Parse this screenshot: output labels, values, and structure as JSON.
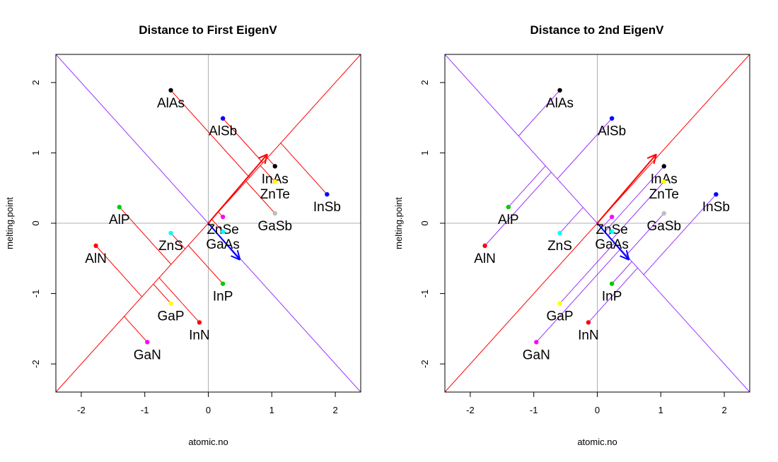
{
  "chart_data": [
    {
      "type": "scatter",
      "title": "Distance to First EigenV",
      "xlabel": "atomic.no",
      "ylabel": "melting.point",
      "xlim": [
        -2.4,
        2.4
      ],
      "ylim": [
        -2.4,
        2.4
      ],
      "xticks": [
        -2,
        -1,
        0,
        1,
        2
      ],
      "yticks": [
        -2,
        -1,
        0,
        1,
        2
      ],
      "tick_labels": [
        "-2",
        "-1",
        "0",
        "1",
        "2"
      ],
      "project_to": "first",
      "lines": [
        {
          "name": "first-eigenvector-line",
          "slope": 1,
          "color": "#ff0000"
        },
        {
          "name": "second-eigenvector-line",
          "slope": -1,
          "color": "#9933ff"
        }
      ],
      "arrows": [
        {
          "name": "first-eigenvector-arrow",
          "to": [
            0.93,
            0.98
          ],
          "color": "#ff0000"
        },
        {
          "name": "second-eigenvector-arrow",
          "to": [
            0.5,
            -0.52
          ],
          "color": "#0000ff"
        }
      ],
      "points": [
        {
          "label": "AlAs",
          "x": -0.59,
          "y": 1.89,
          "color": "#000000"
        },
        {
          "label": "AlSb",
          "x": 0.23,
          "y": 1.49,
          "color": "#0000ff"
        },
        {
          "label": "InAs",
          "x": 1.05,
          "y": 0.81,
          "color": "#000000"
        },
        {
          "label": "ZnTe",
          "x": 1.05,
          "y": 0.59,
          "color": "#ffff00"
        },
        {
          "label": "InSb",
          "x": 1.87,
          "y": 0.41,
          "color": "#0000ff"
        },
        {
          "label": "AlP",
          "x": -1.4,
          "y": 0.23,
          "color": "#00cc00"
        },
        {
          "label": "ZnSe",
          "x": 0.23,
          "y": 0.09,
          "color": "#ff00ff"
        },
        {
          "label": "GaSb",
          "x": 1.05,
          "y": 0.14,
          "color": "#bebebe"
        },
        {
          "label": "ZnS",
          "x": -0.59,
          "y": -0.14,
          "color": "#00ffff"
        },
        {
          "label": "GaAs",
          "x": 0.23,
          "y": -0.12,
          "color": "#00ffff"
        },
        {
          "label": "AlN",
          "x": -1.77,
          "y": -0.32,
          "color": "#ff0000"
        },
        {
          "label": "InP",
          "x": 0.23,
          "y": -0.86,
          "color": "#00cc00"
        },
        {
          "label": "GaP",
          "x": -0.59,
          "y": -1.14,
          "color": "#ffff00"
        },
        {
          "label": "InN",
          "x": -0.14,
          "y": -1.41,
          "color": "#ff0000"
        },
        {
          "label": "GaN",
          "x": -0.96,
          "y": -1.69,
          "color": "#ff00ff"
        }
      ]
    },
    {
      "type": "scatter",
      "title": "Distance to 2nd EigenV",
      "xlabel": "atomic.no",
      "ylabel": "melting.point",
      "xlim": [
        -2.4,
        2.4
      ],
      "ylim": [
        -2.4,
        2.4
      ],
      "xticks": [
        -2,
        -1,
        0,
        1,
        2
      ],
      "yticks": [
        -2,
        -1,
        0,
        1,
        2
      ],
      "tick_labels": [
        "-2",
        "-1",
        "0",
        "1",
        "2"
      ],
      "project_to": "second",
      "lines": [
        {
          "name": "first-eigenvector-line",
          "slope": 1,
          "color": "#ff0000"
        },
        {
          "name": "second-eigenvector-line",
          "slope": -1,
          "color": "#9933ff"
        }
      ],
      "arrows": [
        {
          "name": "first-eigenvector-arrow",
          "to": [
            0.93,
            0.98
          ],
          "color": "#ff0000"
        },
        {
          "name": "second-eigenvector-arrow",
          "to": [
            0.5,
            -0.52
          ],
          "color": "#0000ff"
        }
      ],
      "points": [
        {
          "label": "AlAs",
          "x": -0.59,
          "y": 1.89,
          "color": "#000000"
        },
        {
          "label": "AlSb",
          "x": 0.23,
          "y": 1.49,
          "color": "#0000ff"
        },
        {
          "label": "InAs",
          "x": 1.05,
          "y": 0.81,
          "color": "#000000"
        },
        {
          "label": "ZnTe",
          "x": 1.05,
          "y": 0.59,
          "color": "#ffff00"
        },
        {
          "label": "InSb",
          "x": 1.87,
          "y": 0.41,
          "color": "#0000ff"
        },
        {
          "label": "AlP",
          "x": -1.4,
          "y": 0.23,
          "color": "#00cc00"
        },
        {
          "label": "ZnSe",
          "x": 0.23,
          "y": 0.09,
          "color": "#ff00ff"
        },
        {
          "label": "GaSb",
          "x": 1.05,
          "y": 0.14,
          "color": "#bebebe"
        },
        {
          "label": "ZnS",
          "x": -0.59,
          "y": -0.14,
          "color": "#00ffff"
        },
        {
          "label": "GaAs",
          "x": 0.23,
          "y": -0.12,
          "color": "#00ffff"
        },
        {
          "label": "AlN",
          "x": -1.77,
          "y": -0.32,
          "color": "#ff0000"
        },
        {
          "label": "InP",
          "x": 0.23,
          "y": -0.86,
          "color": "#00cc00"
        },
        {
          "label": "GaP",
          "x": -0.59,
          "y": -1.14,
          "color": "#ffff00"
        },
        {
          "label": "InN",
          "x": -0.14,
          "y": -1.41,
          "color": "#ff0000"
        },
        {
          "label": "GaN",
          "x": -0.96,
          "y": -1.69,
          "color": "#ff00ff"
        }
      ]
    }
  ],
  "colors": {
    "axis_ref": "#b0b0b0",
    "frame": "#000000",
    "projection_first": "#ff0000",
    "projection_second": "#9933ff"
  }
}
